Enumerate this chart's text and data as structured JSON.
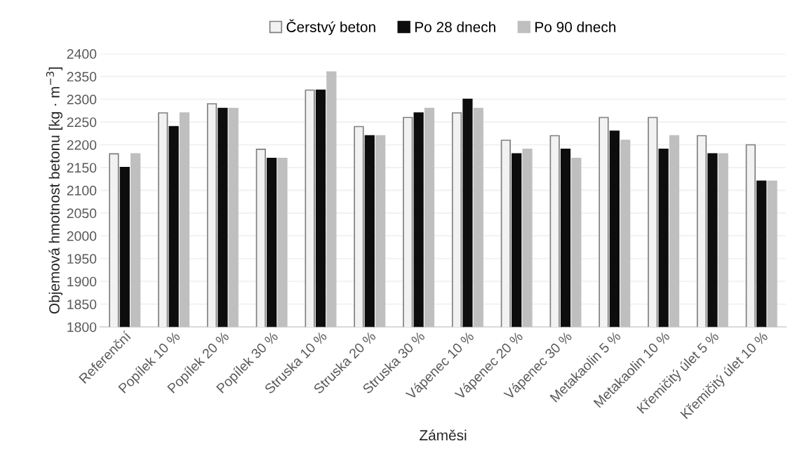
{
  "chart_data": {
    "type": "bar",
    "xlabel": "Záměsi",
    "ylabel": "Objemová hmotnost betonu [kg · m$^{−3}$]",
    "categories": [
      "Referenční",
      "Popílek 10 %",
      "Popílek 20 %",
      "Popílek 30 %",
      "Struska 10 %",
      "Struska 20 %",
      "Struska 30 %",
      "Vápenec 10 %",
      "Vápenec 20 %",
      "Vápenec 30 %",
      "Metakaolin 5 %",
      "Metakaolin 10 %",
      "Křemičitý úlet 5 %",
      "Křemičitý úlet 10 %"
    ],
    "series": [
      {
        "name": "Čerstvý beton",
        "color": "#f2f2f2",
        "values": [
          2180,
          2270,
          2290,
          2190,
          2320,
          2240,
          2260,
          2270,
          2210,
          2220,
          2260,
          2260,
          2220,
          2200
        ]
      },
      {
        "name": "Po 28 dnech",
        "color": "#0d0d0d",
        "values": [
          2150,
          2240,
          2280,
          2170,
          2320,
          2220,
          2270,
          2300,
          2180,
          2190,
          2230,
          2190,
          2180,
          2120
        ]
      },
      {
        "name": "Po 90 dnech",
        "color": "#bfbfbf",
        "values": [
          2180,
          2270,
          2280,
          2170,
          2360,
          2220,
          2280,
          2280,
          2190,
          2170,
          2210,
          2220,
          2180,
          2120
        ]
      }
    ],
    "ylim": [
      1800,
      2400
    ],
    "yticks": [
      1800,
      1850,
      1900,
      1950,
      2000,
      2050,
      2100,
      2150,
      2200,
      2250,
      2300,
      2350,
      2400
    ],
    "grid": "y",
    "legend": "top"
  }
}
